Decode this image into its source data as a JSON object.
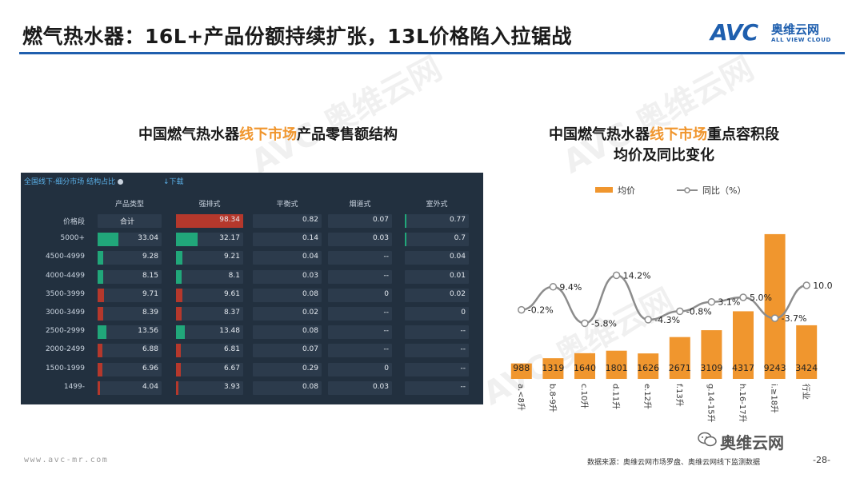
{
  "header": {
    "title": "燃气热水器：16L+产品份额持续扩张，13L价格陷入拉锯战",
    "logo_mark": "AVC",
    "logo_cn": "奥维云网",
    "logo_en": "ALL VIEW CLOUD"
  },
  "watermark": {
    "text_en": "AVC",
    "text_cn": "奥维云网",
    "text_sub": "ALL VIEW CLOUD"
  },
  "left_title": {
    "pre": "中国燃气热水器",
    "highlight": "线下市场",
    "post": "产品零售额结构"
  },
  "right_title": {
    "pre": "中国燃气热水器",
    "highlight": "线下市场",
    "post": "重点容积段",
    "line2": "均价及同比变化"
  },
  "dashboard": {
    "tab_label": "全国线下-细分市场 结构占比",
    "download_label": "↓下载",
    "columns": [
      "产品类型",
      "强排式",
      "平衡式",
      "烟道式",
      "室外式"
    ],
    "rows": [
      {
        "label": "价格段",
        "cells": [
          "合计",
          "98.34",
          "0.82",
          "0.07",
          "0.77"
        ]
      },
      {
        "label": "5000+",
        "cells": [
          "33.04",
          "32.17",
          "0.14",
          "0.03",
          "0.7"
        ]
      },
      {
        "label": "4500-4999",
        "cells": [
          "9.28",
          "9.21",
          "0.04",
          "--",
          "0.04"
        ]
      },
      {
        "label": "4000-4499",
        "cells": [
          "8.15",
          "8.1",
          "0.03",
          "--",
          "0.01"
        ]
      },
      {
        "label": "3500-3999",
        "cells": [
          "9.71",
          "9.61",
          "0.08",
          "0",
          "0.02"
        ]
      },
      {
        "label": "3000-3499",
        "cells": [
          "8.39",
          "8.37",
          "0.02",
          "--",
          "0"
        ]
      },
      {
        "label": "2500-2999",
        "cells": [
          "13.56",
          "13.48",
          "0.08",
          "--",
          "--"
        ]
      },
      {
        "label": "2000-2499",
        "cells": [
          "6.88",
          "6.81",
          "0.07",
          "--",
          "--"
        ]
      },
      {
        "label": "1500-1999",
        "cells": [
          "6.96",
          "6.67",
          "0.29",
          "0",
          "--"
        ]
      },
      {
        "label": "1499-",
        "cells": [
          "4.04",
          "3.93",
          "0.08",
          "0.03",
          "--"
        ]
      }
    ]
  },
  "chart_data": [
    {
      "type": "table",
      "columns": [
        "价格段",
        "产品类型",
        "强排式",
        "平衡式",
        "烟道式",
        "室外式"
      ],
      "rows": [
        [
          "价格段",
          "合计",
          98.34,
          0.82,
          0.07,
          0.77
        ],
        [
          "5000+",
          33.04,
          32.17,
          0.14,
          0.03,
          0.7
        ],
        [
          "4500-4999",
          9.28,
          9.21,
          0.04,
          "--",
          0.04
        ],
        [
          "4000-4499",
          8.15,
          8.1,
          0.03,
          "--",
          0.01
        ],
        [
          "3500-3999",
          9.71,
          9.61,
          0.08,
          0,
          0.02
        ],
        [
          "3000-3499",
          8.39,
          8.37,
          0.02,
          "--",
          0
        ],
        [
          "2500-2999",
          13.56,
          13.48,
          0.08,
          "--",
          "--"
        ],
        [
          "2000-2499",
          6.88,
          6.81,
          0.07,
          "--",
          "--"
        ],
        [
          "1500-1999",
          6.96,
          6.67,
          0.29,
          0,
          "--"
        ],
        [
          "1499-",
          4.04,
          3.93,
          0.08,
          0.03,
          "--"
        ]
      ],
      "highlight_colors": {
        "large": "#b5382c",
        "green": "#21a77a",
        "red": "#b5382c"
      }
    },
    {
      "type": "bar",
      "categories": [
        "a.<8升",
        "b.8-9升",
        "c.10升",
        "d.11升",
        "e.12升",
        "f.13升",
        "g.14-15升",
        "h.16-17升",
        "i.≥18升",
        "行业"
      ],
      "series": [
        {
          "name": "均价",
          "type": "bar",
          "values": [
            988,
            1319,
            1640,
            1801,
            1626,
            2671,
            3109,
            4317,
            9243,
            3424
          ],
          "color": "#f0962e"
        },
        {
          "name": "同比（%）",
          "type": "line",
          "values": [
            -0.2,
            9.4,
            -5.8,
            14.2,
            -4.3,
            -0.8,
            3.1,
            5.0,
            -3.7,
            10.0
          ],
          "labels": [
            "-0.2%",
            "9.4%",
            "-5.8%",
            "14.2%",
            "-4.3%",
            "-0.8%",
            "3.1%",
            "5.0%",
            "-3.7%",
            "10.0%"
          ],
          "color": "#8c8c8c"
        }
      ],
      "ylim": [
        0,
        9800
      ],
      "y2lim": [
        -15,
        35
      ],
      "legend": "top"
    }
  ],
  "footer": {
    "url": "www.avc-mr.com",
    "source": "数据来源：奥维云网市场罗盘、奥维云网线下监测数据",
    "page": "-28-",
    "wechat": "奥维云网"
  }
}
